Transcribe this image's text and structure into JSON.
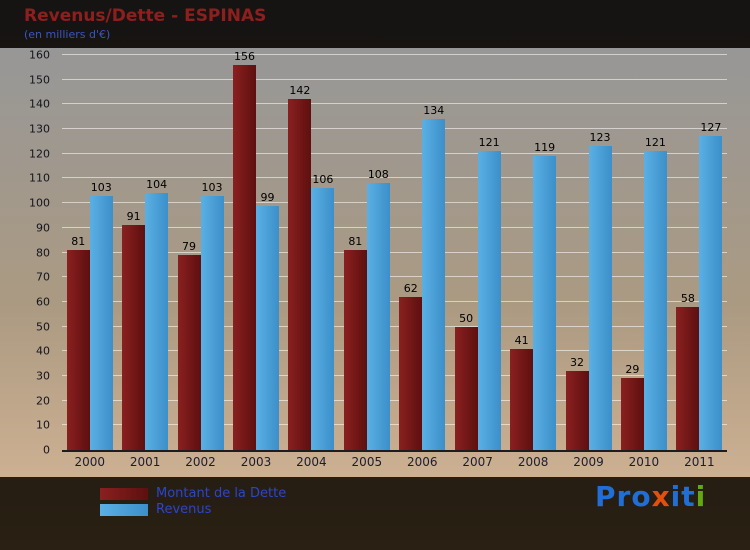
{
  "title": "Revenus/Dette - ESPINAS",
  "subtitle": "(en milliers d'€)",
  "chart_data": {
    "type": "bar",
    "title": "Revenus/Dette - ESPINAS",
    "subtitle": "(en milliers d'€)",
    "categories": [
      "2000",
      "2001",
      "2002",
      "2003",
      "2004",
      "2005",
      "2006",
      "2007",
      "2008",
      "2009",
      "2010",
      "2011"
    ],
    "series": [
      {
        "key": "dette",
        "name": "Montant de la Dette",
        "color": "#8a2020",
        "color_dark": "#5e0f0f",
        "values": [
          81,
          91,
          79,
          156,
          142,
          81,
          62,
          50,
          41,
          32,
          29,
          58
        ]
      },
      {
        "key": "revenus",
        "name": "Revenus",
        "color": "#5ab0e4",
        "color_dark": "#3c8fc9",
        "values": [
          103,
          104,
          103,
          99,
          106,
          108,
          134,
          121,
          119,
          123,
          121,
          127
        ]
      }
    ],
    "ylim": [
      0,
      160
    ],
    "ytick_step": 10,
    "grid": true,
    "legend_position": "bottom-left"
  },
  "logo": {
    "name": "Proxiti",
    "letters": [
      {
        "char": "P",
        "color": "#1f6fd6"
      },
      {
        "char": "r",
        "color": "#1f6fd6"
      },
      {
        "char": "o",
        "color": "#1f6fd6"
      },
      {
        "char": "x",
        "color": "#e2500e"
      },
      {
        "char": "i",
        "color": "#1f6fd6"
      },
      {
        "char": "t",
        "color": "#1f6fd6"
      },
      {
        "char": "i",
        "color": "#63a80f"
      }
    ]
  }
}
